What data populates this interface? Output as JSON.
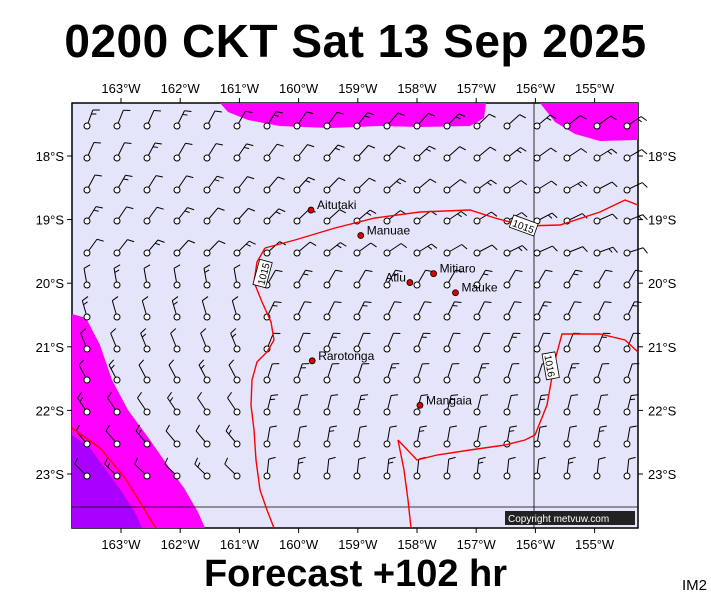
{
  "title": "0200 CKT Sat 13 Sep 2025",
  "footer": "Forecast +102 hr",
  "code": "IM2",
  "copyright": "Copyright metvuw.com",
  "lon_labels": [
    "163°W",
    "162°W",
    "161°W",
    "160°W",
    "159°W",
    "158°W",
    "157°W",
    "156°W",
    "155°W"
  ],
  "lat_labels": [
    "18°S",
    "19°S",
    "20°S",
    "21°S",
    "22°S",
    "23°S"
  ],
  "places": [
    {
      "name": "Aitutaki",
      "lon": -159.79,
      "lat": -18.85
    },
    {
      "name": "Manuae",
      "lon": -158.95,
      "lat": -19.25
    },
    {
      "name": "Atiu",
      "lon": -158.12,
      "lat": -19.99
    },
    {
      "name": "Mitiaro",
      "lon": -157.72,
      "lat": -19.85
    },
    {
      "name": "Mauke",
      "lon": -157.35,
      "lat": -20.15
    },
    {
      "name": "Rarotonga",
      "lon": -159.77,
      "lat": -21.22
    },
    {
      "name": "Mangaia",
      "lon": -157.95,
      "lat": -21.92
    }
  ],
  "isobars": [
    {
      "label": "1015",
      "lon": -160.6,
      "lat": -19.85
    },
    {
      "label": "1015",
      "lon": -156.2,
      "lat": -19.1
    },
    {
      "label": "1016",
      "lon": -155.75,
      "lat": -21.3
    }
  ],
  "colors": {
    "ocean": "#e4e4fa",
    "magenta": "#ff00ff",
    "violet": "#aa00ff",
    "isobar": "#ff0000",
    "copyright_bg": "#222222"
  }
}
